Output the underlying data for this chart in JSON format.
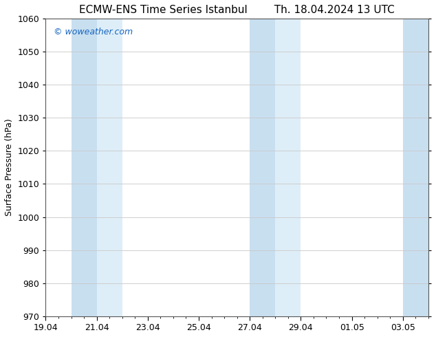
{
  "title_left": "ECMW-ENS Time Series Istanbul",
  "title_right": "Th. 18.04.2024 13 UTC",
  "ylabel": "Surface Pressure (hPa)",
  "ylim": [
    970,
    1060
  ],
  "yticks": [
    970,
    980,
    990,
    1000,
    1010,
    1020,
    1030,
    1040,
    1050,
    1060
  ],
  "xtick_labels": [
    "19.04",
    "21.04",
    "23.04",
    "25.04",
    "27.04",
    "29.04",
    "01.05",
    "03.05"
  ],
  "xtick_positions": [
    0,
    2,
    4,
    6,
    8,
    10,
    12,
    14
  ],
  "xlim": [
    0,
    15
  ],
  "shaded_bands": [
    {
      "x_start": 1.0,
      "x_end": 2.0
    },
    {
      "x_start": 2.0,
      "x_end": 3.0
    },
    {
      "x_start": 8.0,
      "x_end": 9.0
    },
    {
      "x_start": 9.0,
      "x_end": 10.0
    },
    {
      "x_start": 14.0,
      "x_end": 15.0
    }
  ],
  "shade_color_dark": "#c8dff0",
  "shade_color_light": "#deeef8",
  "shade_colors": [
    "#c8dff0",
    "#deeef8",
    "#c8dff0",
    "#deeef8",
    "#c8dff0"
  ],
  "watermark": "© woweather.com",
  "watermark_color": "#1565c0",
  "background_color": "#ffffff",
  "title_fontsize": 11,
  "ylabel_fontsize": 9,
  "tick_fontsize": 9,
  "watermark_fontsize": 9,
  "grid_color": "#c8c8c8",
  "spine_color": "#555555"
}
